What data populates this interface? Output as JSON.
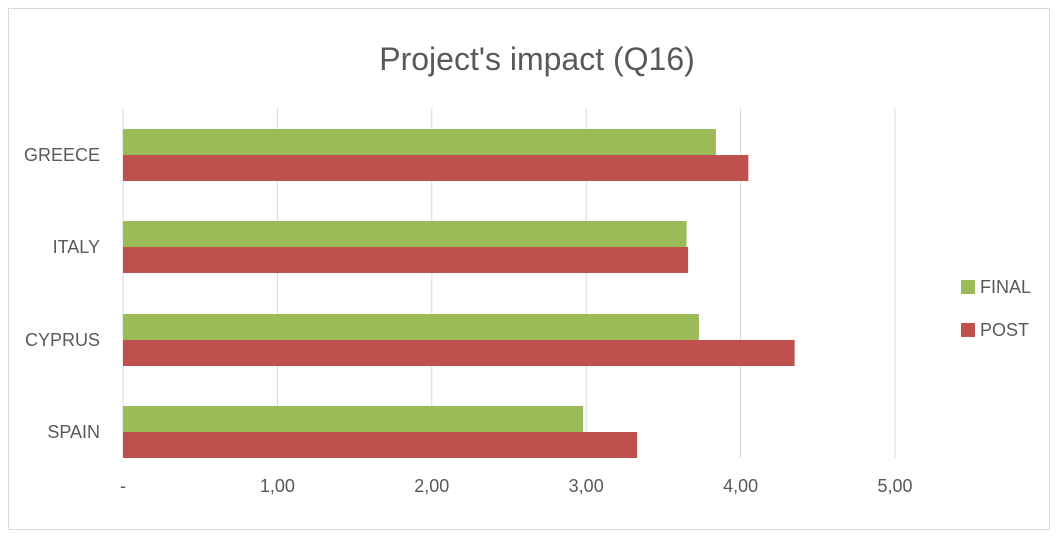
{
  "chart_data": {
    "type": "bar",
    "orientation": "horizontal",
    "title": "Project's impact (Q16)",
    "xlabel": "",
    "ylabel": "",
    "categories": [
      "GREECE",
      "ITALY",
      "CYPRUS",
      "SPAIN"
    ],
    "series": [
      {
        "name": "FINAL",
        "color": "#9bbb59",
        "values": [
          3.84,
          3.65,
          3.73,
          2.98
        ]
      },
      {
        "name": "POST",
        "color": "#c0504d",
        "values": [
          4.05,
          3.66,
          4.35,
          3.33
        ]
      }
    ],
    "xlim": [
      0,
      5.5
    ],
    "xticks": [
      0,
      1,
      2,
      3,
      4,
      5
    ],
    "xtick_labels": [
      "-",
      "1,00",
      "2,00",
      "3,00",
      "4,00",
      "5,00"
    ],
    "grid": "vertical",
    "legend_position": "right"
  }
}
